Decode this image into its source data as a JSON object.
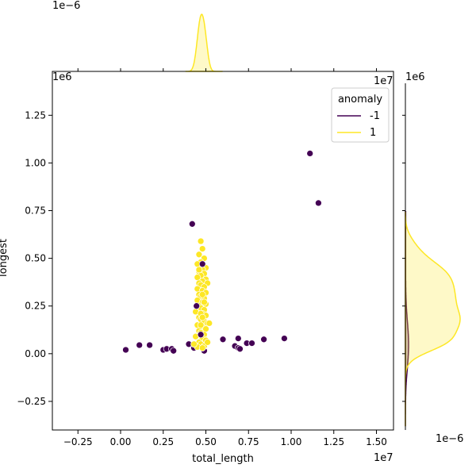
{
  "chart_data": {
    "type": "scatter",
    "xlabel": "total_length",
    "ylabel": "longest",
    "x_offset_label": "1e7",
    "y_offset_label": "1e6",
    "top_marginal_offset_label": "1e−6",
    "right_marginal_offset_label": "1e−6",
    "xlim": [
      -0.4,
      1.6
    ],
    "ylim": [
      -0.4,
      1.48
    ],
    "x_ticks": [
      -0.25,
      0.0,
      0.25,
      0.5,
      0.75,
      1.0,
      1.25,
      1.5
    ],
    "x_tick_labels": [
      "−0.25",
      "0.00",
      "0.25",
      "0.50",
      "0.75",
      "1.00",
      "1.25",
      "1.50"
    ],
    "y_ticks": [
      -0.25,
      0.0,
      0.25,
      0.5,
      0.75,
      1.0,
      1.25
    ],
    "y_tick_labels": [
      "−0.25",
      "0.00",
      "0.25",
      "0.50",
      "0.75",
      "1.00",
      "1.25"
    ],
    "grid": false,
    "legend": {
      "title": "anomaly",
      "placement": "top-right",
      "entries": [
        {
          "label": "-1",
          "color": "#440154"
        },
        {
          "label": "1",
          "color": "#fde725"
        }
      ]
    },
    "series": [
      {
        "name": "-1",
        "color": "#440154",
        "points": [
          [
            0.03,
            0.02
          ],
          [
            0.11,
            0.045
          ],
          [
            0.17,
            0.045
          ],
          [
            0.25,
            0.02
          ],
          [
            0.27,
            0.025
          ],
          [
            0.3,
            0.025
          ],
          [
            0.31,
            0.015
          ],
          [
            0.4,
            0.05
          ],
          [
            0.42,
            0.68
          ],
          [
            0.43,
            0.03
          ],
          [
            0.445,
            0.25
          ],
          [
            0.46,
            0.035
          ],
          [
            0.47,
            0.1
          ],
          [
            0.48,
            0.47
          ],
          [
            0.49,
            0.015
          ],
          [
            0.6,
            0.075
          ],
          [
            0.67,
            0.04
          ],
          [
            0.69,
            0.03
          ],
          [
            0.69,
            0.08
          ],
          [
            0.7,
            0.025
          ],
          [
            0.74,
            0.055
          ],
          [
            0.77,
            0.055
          ],
          [
            0.84,
            0.075
          ],
          [
            0.96,
            0.08
          ],
          [
            1.11,
            1.05
          ],
          [
            1.16,
            0.79
          ]
        ]
      },
      {
        "name": "1",
        "color": "#fde725",
        "points": [
          [
            0.47,
            0.59
          ],
          [
            0.48,
            0.55
          ],
          [
            0.46,
            0.52
          ],
          [
            0.49,
            0.5
          ],
          [
            0.47,
            0.48
          ],
          [
            0.45,
            0.47
          ],
          [
            0.5,
            0.45
          ],
          [
            0.48,
            0.44
          ],
          [
            0.46,
            0.43
          ],
          [
            0.49,
            0.42
          ],
          [
            0.47,
            0.41
          ],
          [
            0.45,
            0.4
          ],
          [
            0.5,
            0.39
          ],
          [
            0.48,
            0.38
          ],
          [
            0.46,
            0.37
          ],
          [
            0.51,
            0.37
          ],
          [
            0.47,
            0.36
          ],
          [
            0.49,
            0.35
          ],
          [
            0.45,
            0.34
          ],
          [
            0.48,
            0.33
          ],
          [
            0.5,
            0.32
          ],
          [
            0.46,
            0.31
          ],
          [
            0.47,
            0.3
          ],
          [
            0.49,
            0.29
          ],
          [
            0.45,
            0.28
          ],
          [
            0.48,
            0.27
          ],
          [
            0.5,
            0.26
          ],
          [
            0.46,
            0.25
          ],
          [
            0.47,
            0.24
          ],
          [
            0.49,
            0.23
          ],
          [
            0.44,
            0.22
          ],
          [
            0.48,
            0.21
          ],
          [
            0.5,
            0.2
          ],
          [
            0.46,
            0.19
          ],
          [
            0.47,
            0.18
          ],
          [
            0.49,
            0.17
          ],
          [
            0.51,
            0.16
          ],
          [
            0.45,
            0.15
          ],
          [
            0.48,
            0.14
          ],
          [
            0.5,
            0.13
          ],
          [
            0.46,
            0.12
          ],
          [
            0.47,
            0.11
          ],
          [
            0.49,
            0.1
          ],
          [
            0.52,
            0.16
          ],
          [
            0.44,
            0.09
          ],
          [
            0.48,
            0.08
          ],
          [
            0.5,
            0.07
          ],
          [
            0.46,
            0.06
          ],
          [
            0.47,
            0.05
          ],
          [
            0.49,
            0.04
          ],
          [
            0.45,
            0.035
          ],
          [
            0.48,
            0.03
          ],
          [
            0.43,
            0.05
          ],
          [
            0.51,
            0.06
          ],
          [
            0.47,
            0.21
          ],
          [
            0.48,
            0.31
          ],
          [
            0.46,
            0.44
          ],
          [
            0.49,
            0.27
          ],
          [
            0.47,
            0.15
          ],
          [
            0.48,
            0.19
          ]
        ]
      }
    ]
  }
}
